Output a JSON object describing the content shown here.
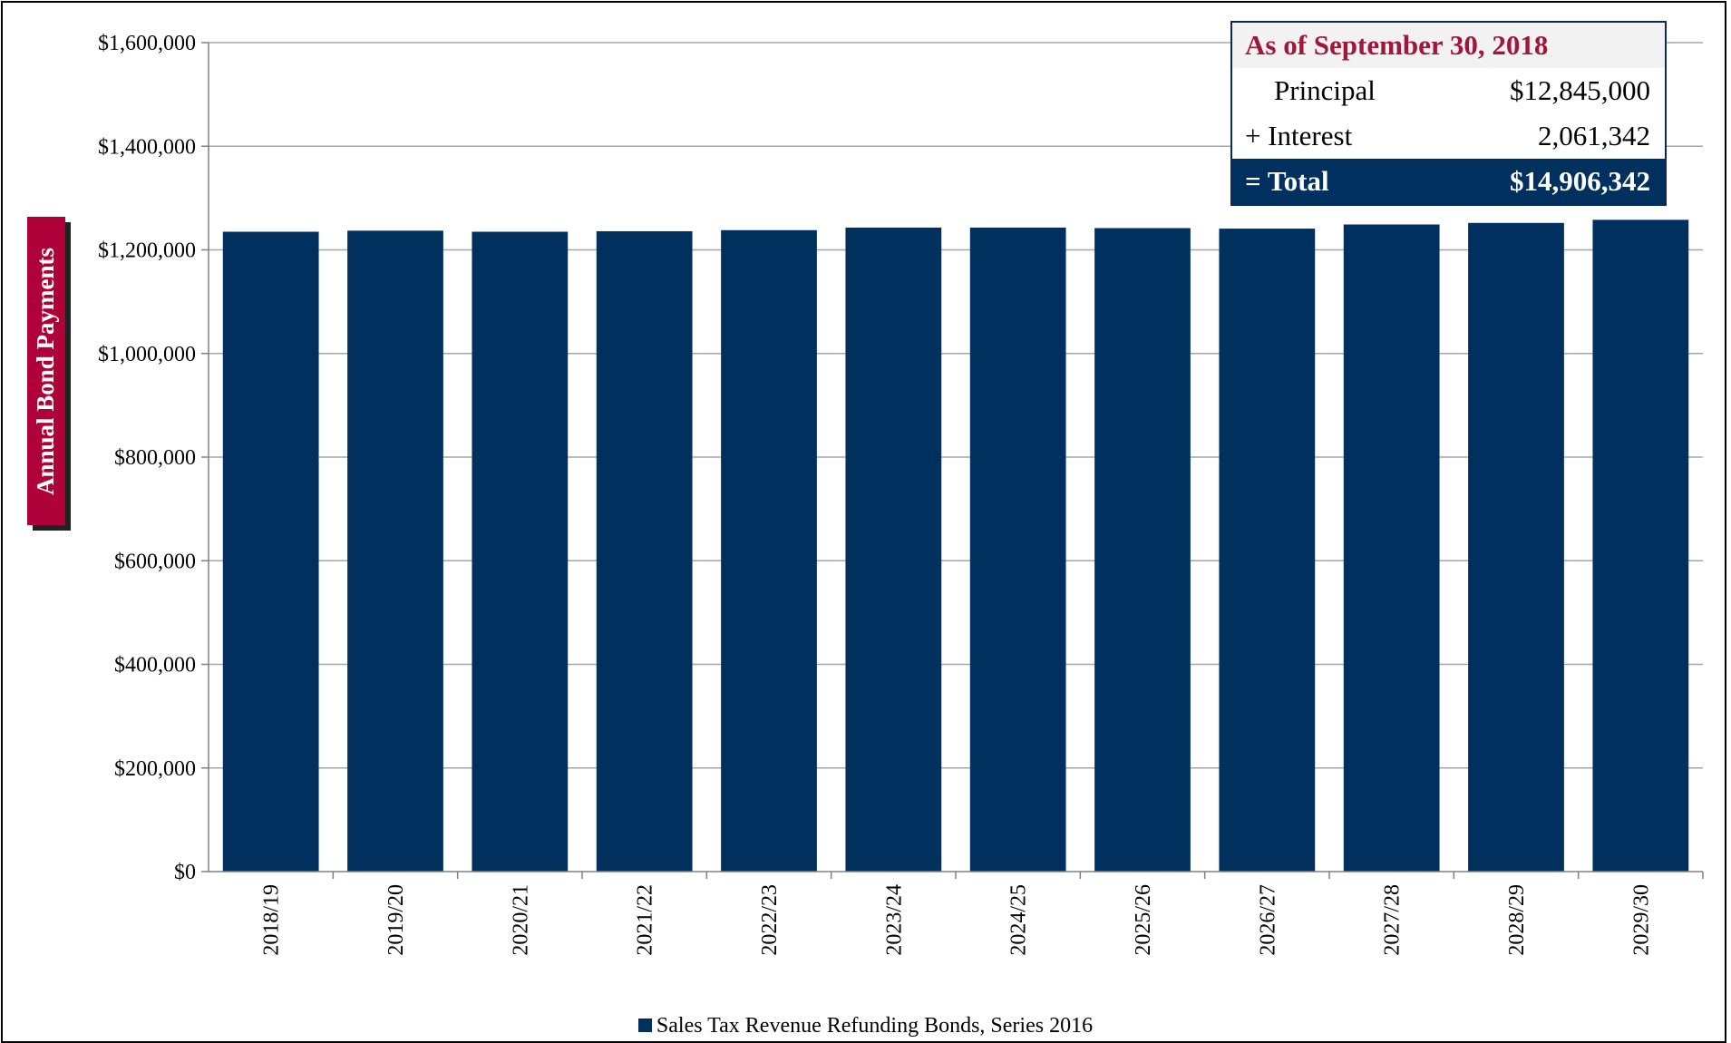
{
  "chart_data": {
    "type": "bar",
    "ylabel": "Annual Bond Payments",
    "ylim": [
      0,
      1600000
    ],
    "yticks": [
      0,
      200000,
      400000,
      600000,
      800000,
      1000000,
      1200000,
      1400000,
      1600000
    ],
    "ytick_labels": [
      "$0",
      "$200,000",
      "$400,000",
      "$600,000",
      "$800,000",
      "$1,000,000",
      "$1,200,000",
      "$1,400,000",
      "$1,600,000"
    ],
    "categories": [
      "2018/19",
      "2019/20",
      "2020/21",
      "2021/22",
      "2022/23",
      "2023/24",
      "2024/25",
      "2025/26",
      "2026/27",
      "2027/28",
      "2028/29",
      "2029/30"
    ],
    "series": [
      {
        "name": "Sales Tax Revenue Refunding Bonds, Series 2016",
        "color": "#00305e",
        "values": [
          1235000,
          1237000,
          1235000,
          1236000,
          1238000,
          1243000,
          1243000,
          1242000,
          1241000,
          1249000,
          1252000,
          1258000
        ]
      }
    ],
    "grid": true,
    "legend_position": "bottom"
  },
  "summary": {
    "heading": "As of September 30, 2018",
    "rows": [
      {
        "label": "Principal",
        "value": "$12,845,000"
      },
      {
        "label": "+ Interest",
        "value": "2,061,342"
      },
      {
        "label": "= Total",
        "value": "$14,906,342"
      }
    ]
  },
  "legend": {
    "label": "Sales Tax Revenue Refunding Bonds, Series 2016"
  }
}
